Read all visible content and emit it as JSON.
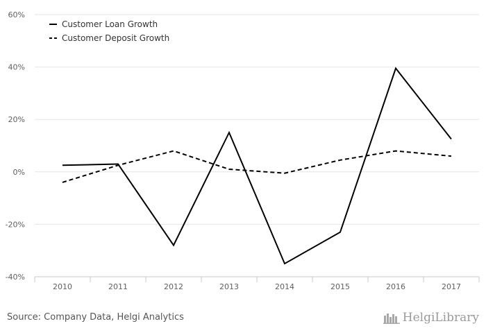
{
  "chart_data": {
    "type": "line",
    "categories": [
      "2010",
      "2011",
      "2012",
      "2013",
      "2014",
      "2015",
      "2016",
      "2017"
    ],
    "series": [
      {
        "name": "Customer Loan Growth",
        "style": "solid",
        "color": "#000000",
        "values": [
          2.5,
          3.0,
          -28.0,
          15.0,
          -35.0,
          -23.0,
          39.5,
          12.5
        ]
      },
      {
        "name": "Customer Deposit Growth",
        "style": "dashed",
        "color": "#000000",
        "values": [
          -4.0,
          2.5,
          8.0,
          1.0,
          -0.5,
          4.5,
          8.0,
          6.0
        ]
      }
    ],
    "ylim": [
      -40,
      60
    ],
    "yticks": [
      -40,
      -20,
      0,
      20,
      40,
      60
    ],
    "ytick_labels": [
      "-40%",
      "-20%",
      "0%",
      "20%",
      "40%",
      "60%"
    ],
    "grid": true,
    "legend_position": "top-left",
    "title": "",
    "xlabel": "",
    "ylabel": ""
  },
  "footer": {
    "source": "Source: Company Data, Helgi Analytics",
    "brand": "HelgiLibrary"
  }
}
